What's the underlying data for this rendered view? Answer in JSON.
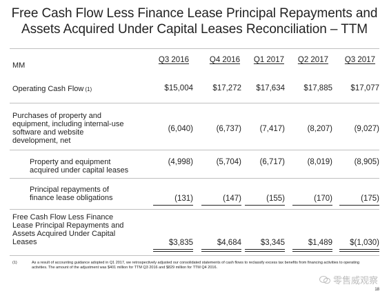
{
  "title_line1": "Free Cash Flow Less Finance Lease Principal Repayments and",
  "title_line2": "Assets Acquired Under Capital Leases Reconciliation – TTM",
  "unit": "MM",
  "columns": [
    "Q3 2016",
    "Q4 2016",
    "Q1 2017",
    "Q2 2017",
    "Q3 2017"
  ],
  "rows": [
    {
      "label": [
        "Operating Cash Flow"
      ],
      "note": "(1)",
      "values": [
        "$15,004",
        "$17,272",
        "$17,634",
        "$17,885",
        "$17,077"
      ]
    },
    {
      "label": [
        "Purchases of property and",
        "equipment, including internal-use",
        "software and website",
        "development, net"
      ],
      "values": [
        "(6,040)",
        "(6,737)",
        "(7,417)",
        "(8,207)",
        "(9,027)"
      ]
    },
    {
      "label": [
        "Property and equipment",
        "acquired under capital leases"
      ],
      "values": [
        "(4,998)",
        "(5,704)",
        "(6,717)",
        "(8,019)",
        "(8,905)"
      ]
    },
    {
      "label": [
        "Principal repayments of",
        "finance lease obligations"
      ],
      "values": [
        "(131)",
        "(147)",
        "(155)",
        "(170)",
        "(175)"
      ]
    },
    {
      "label": [
        "Free Cash Flow Less Finance",
        "Lease Principal Repayments and",
        "Assets Acquired Under Capital",
        "Leases"
      ],
      "values": [
        "$3,835",
        "$4,684",
        "$3,345",
        "$1,489",
        "$(1,030)"
      ]
    }
  ],
  "footnote_marker": "(1)",
  "footnote_text": "As a result of accounting guidance adopted in Q1 2017, we retrospectively adjusted our consolidated statements of cash flows to reclassify excess tax benefits from financing activities to operating activities. The amount of the adjustment was $401 million for TTM Q3 2016 and $829 million for TTM Q4 2016.",
  "page_number": "18",
  "watermark_text": "零售威观察"
}
